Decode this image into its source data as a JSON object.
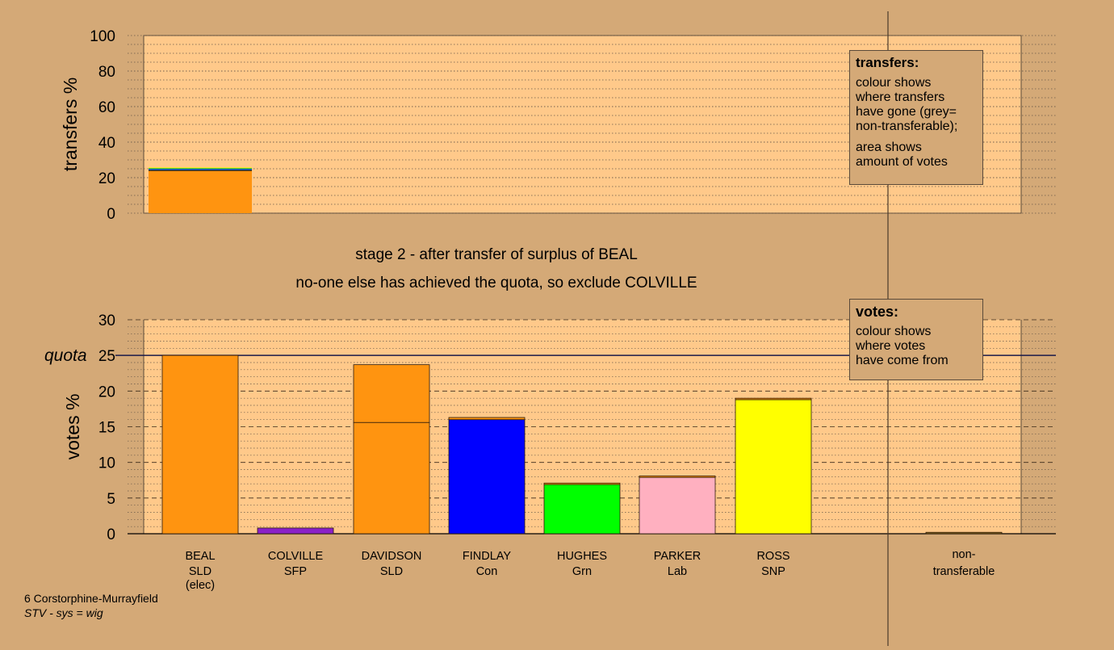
{
  "chart_data": [
    {
      "type": "bar",
      "ylabel": "transfers %",
      "ylim": [
        0,
        100
      ],
      "yticks": [
        0,
        20,
        40,
        60,
        80,
        100
      ],
      "minor_gridlines": true,
      "bars": [
        {
          "category_index": 0,
          "segments": [
            {
              "value": 23.8,
              "color": "#ff9410"
            },
            {
              "value": 0.5,
              "color": "#000000"
            },
            {
              "value": 0.8,
              "color": "#1e6fd0"
            },
            {
              "value": 0.3,
              "color": "#00c000"
            },
            {
              "value": 0.3,
              "color": "#ffff00"
            }
          ]
        }
      ]
    },
    {
      "type": "bar",
      "ylabel": "votes %",
      "ylim": [
        0,
        30
      ],
      "yticks": [
        0,
        5,
        10,
        15,
        20,
        25,
        30
      ],
      "quota": 25,
      "quota_label": "quota",
      "minor_gridlines": true,
      "categories": [
        {
          "name": "BEAL",
          "party": "SLD",
          "note": "(elec)"
        },
        {
          "name": "COLVILLE",
          "party": "SFP",
          "note": ""
        },
        {
          "name": "DAVIDSON",
          "party": "SLD",
          "note": ""
        },
        {
          "name": "FINDLAY",
          "party": "Con",
          "note": ""
        },
        {
          "name": "HUGHES",
          "party": "Grn",
          "note": ""
        },
        {
          "name": "PARKER",
          "party": "Lab",
          "note": ""
        },
        {
          "name": "ROSS",
          "party": "SNP",
          "note": ""
        }
      ],
      "nontransferable_label": [
        "non-",
        "transferable"
      ],
      "bars": [
        {
          "category_index": 0,
          "segments": [
            {
              "value": 25.0,
              "color": "#ff9410"
            }
          ]
        },
        {
          "category_index": 1,
          "segments": [
            {
              "value": 0.8,
              "color": "#8a20c8"
            }
          ]
        },
        {
          "category_index": 2,
          "segments": [
            {
              "value": 15.6,
              "color": "#ff9410"
            },
            {
              "value": 8.1,
              "color": "#ff9410"
            }
          ]
        },
        {
          "category_index": 3,
          "segments": [
            {
              "value": 16.0,
              "color": "#0000ff"
            },
            {
              "value": 0.3,
              "color": "#ff9410"
            }
          ]
        },
        {
          "category_index": 4,
          "segments": [
            {
              "value": 6.9,
              "color": "#00ff00"
            },
            {
              "value": 0.2,
              "color": "#ff9410"
            }
          ]
        },
        {
          "category_index": 5,
          "segments": [
            {
              "value": 7.9,
              "color": "#ffb0c0"
            },
            {
              "value": 0.2,
              "color": "#ff9410"
            }
          ]
        },
        {
          "category_index": 6,
          "segments": [
            {
              "value": 18.8,
              "color": "#ffff00"
            },
            {
              "value": 0.2,
              "color": "#ff9410"
            }
          ]
        },
        {
          "category_index": 7,
          "segments": [
            {
              "value": 0.2,
              "color": "#8b6a1e"
            }
          ]
        }
      ]
    }
  ],
  "stage_text": {
    "line1": "stage 2 - after transfer of surplus of BEAL",
    "line2": "no-one else has achieved the quota, so exclude COLVILLE"
  },
  "legend_transfers": {
    "title": "transfers:",
    "para1": [
      "colour shows",
      "where transfers",
      "have gone (grey=",
      "non-transferable);"
    ],
    "para2": [
      "area shows",
      "amount of votes"
    ]
  },
  "legend_votes": {
    "title": "votes:",
    "para1": [
      "colour shows",
      "where votes",
      "have come from"
    ]
  },
  "footer": {
    "line1": "6 Corstorphine-Murrayfield",
    "line2": "STV - sys = wig"
  },
  "colors": {
    "background": "#d4a977",
    "plot_background": "#ffc98a",
    "accent_line": "#1a1a4a"
  }
}
